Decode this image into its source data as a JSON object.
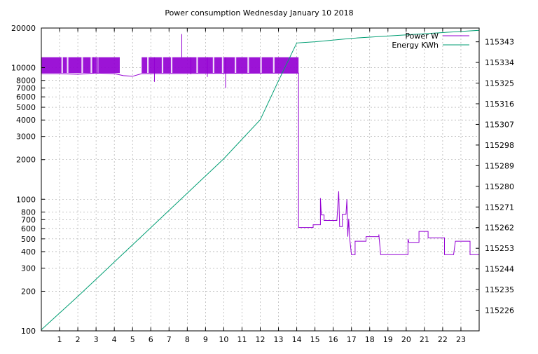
{
  "chart_data": {
    "type": "line",
    "title": "Power consumption Wednesday January 10 2018",
    "xlabel": "",
    "ylabel": "",
    "y2label": "",
    "grid": true,
    "legend_position": "top-right",
    "xlim": [
      0,
      24
    ],
    "ylim": [
      100,
      20000
    ],
    "ylog": true,
    "y2lim": [
      115217,
      115349
    ],
    "x_ticks": [
      "1",
      "2",
      "3",
      "4",
      "5",
      "6",
      "7",
      "8",
      "9",
      "10",
      "11",
      "12",
      "13",
      "14",
      "15",
      "16",
      "17",
      "18",
      "19",
      "20",
      "21",
      "22",
      "23"
    ],
    "y_ticks": [
      "100",
      "200",
      "300",
      "400",
      "500",
      "600",
      "700",
      "800",
      "1000",
      "2000",
      "3000",
      "4000",
      "5000",
      "6000",
      "7000",
      "8000",
      "10000",
      "20000"
    ],
    "y2_ticks": [
      "115226",
      "115235",
      "115244",
      "115253",
      "115262",
      "115271",
      "115280",
      "115289",
      "115298",
      "115307",
      "115316",
      "115325",
      "115334",
      "115343"
    ],
    "colors": {
      "power": "#9400d3",
      "energy": "#009e73"
    },
    "series": [
      {
        "name": "Power W",
        "axis": "left",
        "color": "#9400d3",
        "band": {
          "x_from": 0,
          "x_to": 14.1,
          "low": 9100,
          "high": 12000
        },
        "band_gap": {
          "x_from": 4.3,
          "x_to": 5.5
        },
        "spikes": [
          [
            7.7,
            18000
          ],
          [
            6.2,
            7800
          ],
          [
            9.1,
            8500
          ],
          [
            10.1,
            7000
          ],
          [
            8.2,
            8900
          ]
        ],
        "points": [
          [
            0,
            9000
          ],
          [
            1,
            9000
          ],
          [
            2,
            8900
          ],
          [
            3,
            9100
          ],
          [
            4,
            9000
          ],
          [
            4.5,
            8700
          ],
          [
            5.0,
            8600
          ],
          [
            5.5,
            9000
          ],
          [
            14.1,
            9100
          ],
          [
            14.1,
            610
          ],
          [
            14.5,
            610
          ],
          [
            14.9,
            610
          ],
          [
            14.9,
            640
          ],
          [
            15.3,
            640
          ],
          [
            15.3,
            1020
          ],
          [
            15.35,
            760
          ],
          [
            15.5,
            760
          ],
          [
            15.5,
            690
          ],
          [
            16.2,
            690
          ],
          [
            16.3,
            1150
          ],
          [
            16.35,
            620
          ],
          [
            16.5,
            620
          ],
          [
            16.5,
            770
          ],
          [
            16.7,
            770
          ],
          [
            16.75,
            1000
          ],
          [
            16.8,
            520
          ],
          [
            16.85,
            710
          ],
          [
            16.9,
            510
          ],
          [
            17.0,
            380
          ],
          [
            17.2,
            380
          ],
          [
            17.2,
            480
          ],
          [
            17.8,
            480
          ],
          [
            17.8,
            520
          ],
          [
            18.5,
            520
          ],
          [
            18.5,
            540
          ],
          [
            18.6,
            380
          ],
          [
            20.1,
            380
          ],
          [
            20.1,
            500
          ],
          [
            20.15,
            470
          ],
          [
            20.7,
            470
          ],
          [
            20.7,
            570
          ],
          [
            21.2,
            570
          ],
          [
            21.2,
            510
          ],
          [
            22.1,
            510
          ],
          [
            22.1,
            380
          ],
          [
            22.6,
            380
          ],
          [
            22.7,
            480
          ],
          [
            23.5,
            480
          ],
          [
            23.5,
            380
          ],
          [
            24,
            380
          ]
        ]
      },
      {
        "name": "Energy KWh",
        "axis": "right",
        "color": "#009e73",
        "points": [
          [
            0,
            115217.5
          ],
          [
            2,
            115232
          ],
          [
            4,
            115247
          ],
          [
            6,
            115262
          ],
          [
            8,
            115277
          ],
          [
            10,
            115292
          ],
          [
            12,
            115309
          ],
          [
            13,
            115326
          ],
          [
            14,
            115342.5
          ],
          [
            15,
            115343
          ],
          [
            17,
            115344.5
          ],
          [
            20,
            115346
          ],
          [
            22,
            115347
          ],
          [
            24,
            115348
          ]
        ]
      }
    ]
  }
}
